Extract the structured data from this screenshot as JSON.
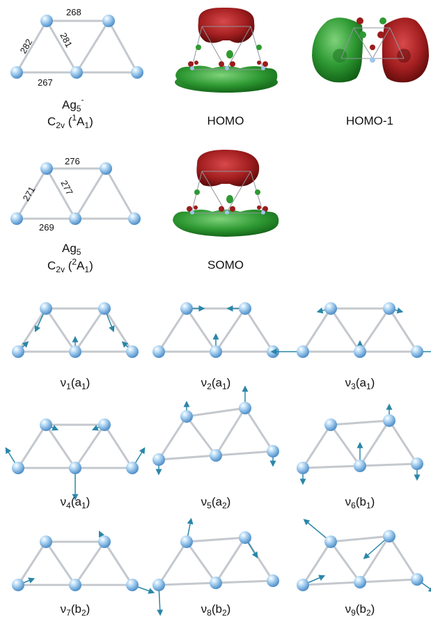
{
  "structures": [
    {
      "id": "anion",
      "bond_lengths": [
        "268",
        "282",
        "281",
        "267"
      ],
      "formula": "Ag",
      "formula_sub": "5",
      "formula_sup": "-",
      "symmetry": {
        "C": "C",
        "sub": "2v",
        "open": " (",
        "sup": "1",
        "A": "A",
        "Asub": "1",
        "close": ")"
      }
    },
    {
      "id": "neutral",
      "bond_lengths": [
        "276",
        "271",
        "277",
        "269"
      ],
      "formula": "Ag",
      "formula_sub": "5",
      "formula_sup": "",
      "symmetry": {
        "C": "C",
        "sub": "2v",
        "open": " (",
        "sup": "2",
        "A": "A",
        "Asub": "1",
        "close": ")"
      }
    }
  ],
  "orbitals": [
    "HOMO",
    "HOMO-1",
    "SOMO"
  ],
  "modes": [
    {
      "nu": "ν",
      "n": "1",
      "sym": "a",
      "sym_sub": "1"
    },
    {
      "nu": "ν",
      "n": "2",
      "sym": "a",
      "sym_sub": "1"
    },
    {
      "nu": "ν",
      "n": "3",
      "sym": "a",
      "sym_sub": "1"
    },
    {
      "nu": "ν",
      "n": "4",
      "sym": "a",
      "sym_sub": "1"
    },
    {
      "nu": "ν",
      "n": "5",
      "sym": "a",
      "sym_sub": "2"
    },
    {
      "nu": "ν",
      "n": "6",
      "sym": "b",
      "sym_sub": "1"
    },
    {
      "nu": "ν",
      "n": "7",
      "sym": "b",
      "sym_sub": "2"
    },
    {
      "nu": "ν",
      "n": "8",
      "sym": "b",
      "sym_sub": "2"
    },
    {
      "nu": "ν",
      "n": "9",
      "sym": "b",
      "sym_sub": "2"
    }
  ],
  "colors": {
    "atom": "#8fc3ee",
    "bond": "#c4c8ce",
    "vector": "#2a86a8",
    "lobe_red": "#9b1c1c",
    "lobe_green": "#2e9a33"
  }
}
